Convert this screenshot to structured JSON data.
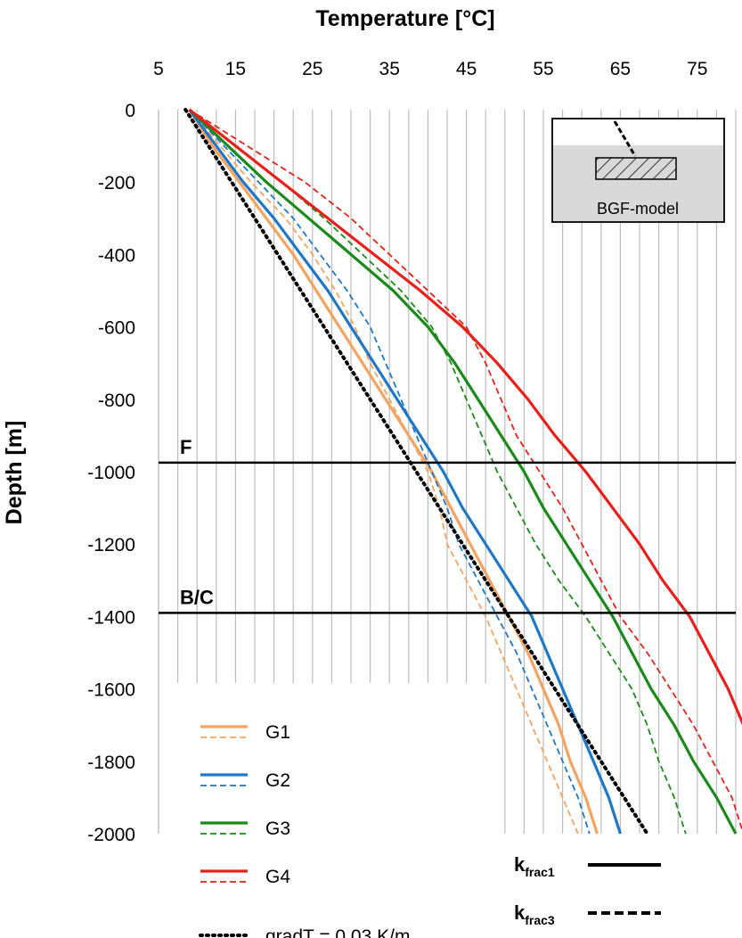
{
  "chart_data": {
    "type": "line",
    "title": "",
    "xlabel": "Temperature  [°C]",
    "ylabel": "Depth [m]",
    "xlim": [
      5,
      80
    ],
    "ylim": [
      -2000,
      0
    ],
    "x_ticks": [
      5,
      15,
      25,
      35,
      45,
      55,
      65,
      75
    ],
    "y_ticks": [
      0,
      -200,
      -400,
      -600,
      -800,
      -1000,
      -1200,
      -1400,
      -1600,
      -1800,
      -2000
    ],
    "x_axis_position": "top",
    "grid": "vertical minor gridlines every 2.5 °C",
    "reference_lines": [
      {
        "label": "F",
        "depth": -975
      },
      {
        "label": "B/C",
        "depth": -1390
      }
    ],
    "inset_label": "BGF-model",
    "series": [
      {
        "name": "G1",
        "group": "G1",
        "style": "solid",
        "color": "#f4a460",
        "depth": [
          0,
          -100,
          -200,
          -300,
          -400,
          -500,
          -600,
          -700,
          -800,
          -900,
          -1000,
          -1100,
          -1200,
          -1300,
          -1400,
          -1500,
          -1600,
          -1700,
          -1800,
          -1900,
          -2000
        ],
        "temp": [
          9,
          12,
          15.5,
          19,
          22.5,
          25.5,
          28.5,
          31.5,
          34.5,
          37.5,
          40.5,
          43,
          45.5,
          48,
          50.5,
          53,
          55,
          57,
          58.5,
          60.5,
          62
        ]
      },
      {
        "name": "G1 kfrac3",
        "group": "G1",
        "style": "dashed",
        "color": "#f4a460",
        "depth": [
          0,
          -100,
          -200,
          -300,
          -400,
          -500,
          -600,
          -700,
          -800,
          -900,
          -1000,
          -1100,
          -1200,
          -1300,
          -1400,
          -1500,
          -1600,
          -1700,
          -1800,
          -1900,
          -2000
        ],
        "temp": [
          9,
          13,
          17,
          21.5,
          25,
          28,
          30.5,
          32.5,
          35,
          37.5,
          40,
          41.5,
          42.5,
          45,
          47.5,
          49.5,
          51.5,
          53.5,
          55.5,
          57.5,
          59.5
        ]
      },
      {
        "name": "G2",
        "group": "G2",
        "style": "solid",
        "color": "#1f77c8",
        "depth": [
          0,
          -100,
          -200,
          -300,
          -400,
          -500,
          -600,
          -700,
          -800,
          -900,
          -1000,
          -1100,
          -1200,
          -1300,
          -1400,
          -1500,
          -1600,
          -1700,
          -1800,
          -1900,
          -2000
        ],
        "temp": [
          9,
          12.5,
          16,
          20,
          23.5,
          27,
          30,
          33,
          36,
          39,
          42,
          44.5,
          47.5,
          50.5,
          53.5,
          55.5,
          57.5,
          59.5,
          61.5,
          63.5,
          65
        ]
      },
      {
        "name": "G2 kfrac3",
        "group": "G2",
        "style": "dashed",
        "color": "#1f77c8",
        "depth": [
          0,
          -100,
          -200,
          -300,
          -400,
          -500,
          -600,
          -700,
          -800,
          -900,
          -1000,
          -1100,
          -1200,
          -1300,
          -1400,
          -1500,
          -1600,
          -1700,
          -1800,
          -1900,
          -2000
        ],
        "temp": [
          9,
          13.5,
          18,
          22.5,
          26,
          29.5,
          32.5,
          34.5,
          36.5,
          38.5,
          40.5,
          42.5,
          44,
          46.5,
          49,
          51.5,
          53.5,
          55.5,
          57.5,
          59.5,
          61
        ]
      },
      {
        "name": "G3",
        "group": "G3",
        "style": "solid",
        "color": "#1a8a1a",
        "depth": [
          0,
          -100,
          -200,
          -300,
          -400,
          -500,
          -600,
          -700,
          -800,
          -900,
          -1000,
          -1100,
          -1200,
          -1300,
          -1400,
          -1500,
          -1600,
          -1700,
          -1800,
          -1900,
          -2000
        ],
        "temp": [
          9,
          14,
          19,
          24.5,
          30,
          35.5,
          40,
          43.5,
          46.5,
          49.5,
          52.5,
          55,
          58,
          61,
          64,
          66.5,
          69,
          72,
          74.5,
          77.5,
          80
        ]
      },
      {
        "name": "G3 kfrac3",
        "group": "G3",
        "style": "dashed",
        "color": "#1a8a1a",
        "depth": [
          0,
          -100,
          -200,
          -300,
          -400,
          -500,
          -600,
          -700,
          -800,
          -900,
          -1000,
          -1100,
          -1200,
          -1300,
          -1400,
          -1500,
          -1600,
          -1700,
          -1800,
          -1900,
          -2000
        ],
        "temp": [
          9,
          15,
          21,
          26.5,
          31.5,
          36.5,
          40.5,
          43,
          45,
          47,
          49,
          51.5,
          54,
          57,
          60.5,
          63.5,
          66.5,
          68.5,
          70,
          72,
          73.5
        ]
      },
      {
        "name": "G4",
        "group": "G4",
        "style": "solid",
        "color": "#e8201a",
        "depth": [
          0,
          -100,
          -200,
          -300,
          -400,
          -500,
          -600,
          -700,
          -800,
          -900,
          -1000,
          -1100,
          -1200,
          -1300,
          -1400,
          -1500,
          -1600,
          -1700
        ],
        "temp": [
          9,
          15,
          21,
          27,
          33,
          39,
          44.5,
          49,
          53,
          56.5,
          60.5,
          64,
          67.5,
          70.5,
          74,
          76.5,
          79,
          81
        ]
      },
      {
        "name": "G4 kfrac3",
        "group": "G4",
        "style": "dashed",
        "color": "#e8201a",
        "depth": [
          0,
          -100,
          -200,
          -300,
          -400,
          -500,
          -600,
          -700,
          -800,
          -900,
          -1000,
          -1100,
          -1200,
          -1300,
          -1400,
          -1500,
          -1600,
          -1700,
          -1800,
          -1900,
          -2000
        ],
        "temp": [
          9,
          16.5,
          24,
          30,
          35,
          40,
          45,
          47.5,
          49.5,
          51.5,
          54.5,
          57.5,
          60,
          62.5,
          65,
          68.5,
          71.5,
          74.5,
          77,
          79.5,
          81
        ]
      },
      {
        "name": "gradT = 0.03 K/m",
        "group": "gradT",
        "style": "dotted",
        "color": "#000000",
        "depth": [
          0,
          -2000
        ],
        "temp": [
          8.5,
          68.5
        ]
      }
    ],
    "legend": {
      "placement": "bottom-left",
      "entries": [
        {
          "label": "G1",
          "color": "#f4a460",
          "dual": true
        },
        {
          "label": "G2",
          "color": "#1f77c8",
          "dual": true
        },
        {
          "label": "G3",
          "color": "#1a8a1a",
          "dual": true
        },
        {
          "label": "G4",
          "color": "#e8201a",
          "dual": true
        },
        {
          "label": "gradT = 0.03 K/m",
          "color": "#000000",
          "dual": false
        }
      ]
    },
    "line_style_legend": {
      "placement": "bottom-right",
      "entries": [
        {
          "main": "k",
          "sub": "frac1",
          "style": "solid"
        },
        {
          "main": "k",
          "sub": "frac3",
          "style": "dashed"
        }
      ]
    }
  }
}
